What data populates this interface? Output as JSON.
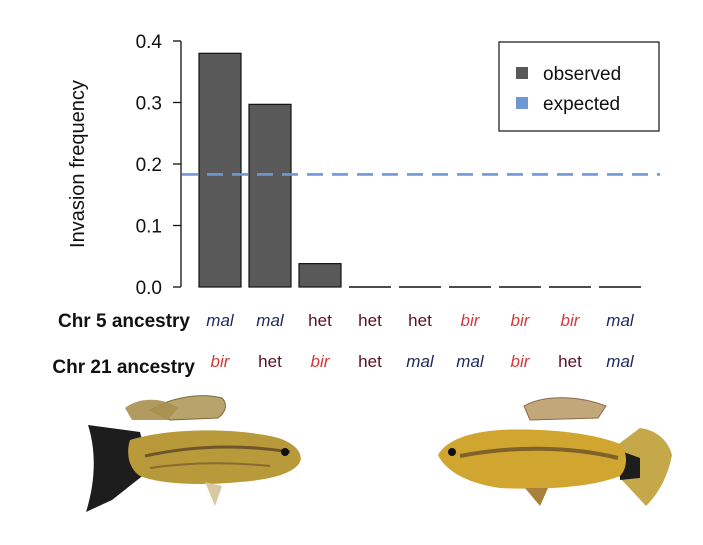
{
  "chart_data": {
    "type": "bar",
    "ylabel": "Invasion frequency",
    "ylim": [
      0,
      0.4
    ],
    "yticks": [
      "0.0",
      "0.1",
      "0.2",
      "0.3",
      "0.4"
    ],
    "values": [
      0.38,
      0.297,
      0.038,
      0.0,
      0.0,
      0.0,
      0.0,
      0.0,
      0.0
    ],
    "expected": 0.183,
    "legend": {
      "position": "top-right",
      "items": [
        {
          "label": "observed",
          "color": "#595959",
          "style": "square"
        },
        {
          "label": "expected",
          "color": "#6f98d4",
          "style": "dashed"
        }
      ]
    },
    "categories": [
      {
        "chr5": "mal",
        "chr21": "bir"
      },
      {
        "chr5": "mal",
        "chr21": "het"
      },
      {
        "chr5": "het",
        "chr21": "bir"
      },
      {
        "chr5": "het",
        "chr21": "het"
      },
      {
        "chr5": "het",
        "chr21": "mal"
      },
      {
        "chr5": "bir",
        "chr21": "mal"
      },
      {
        "chr5": "bir",
        "chr21": "bir"
      },
      {
        "chr5": "bir",
        "chr21": "het"
      },
      {
        "chr5": "mal",
        "chr21": "mal"
      }
    ],
    "row_labels": {
      "chr5": "Chr 5 ancestry",
      "chr21": "Chr 21 ancestry"
    },
    "genotype_colors": {
      "mal": "#1e2a5a",
      "het": "#5a1020",
      "bir": "#d23a3a"
    },
    "bar_color": "#595959",
    "expected_color": "#6f98d4"
  }
}
